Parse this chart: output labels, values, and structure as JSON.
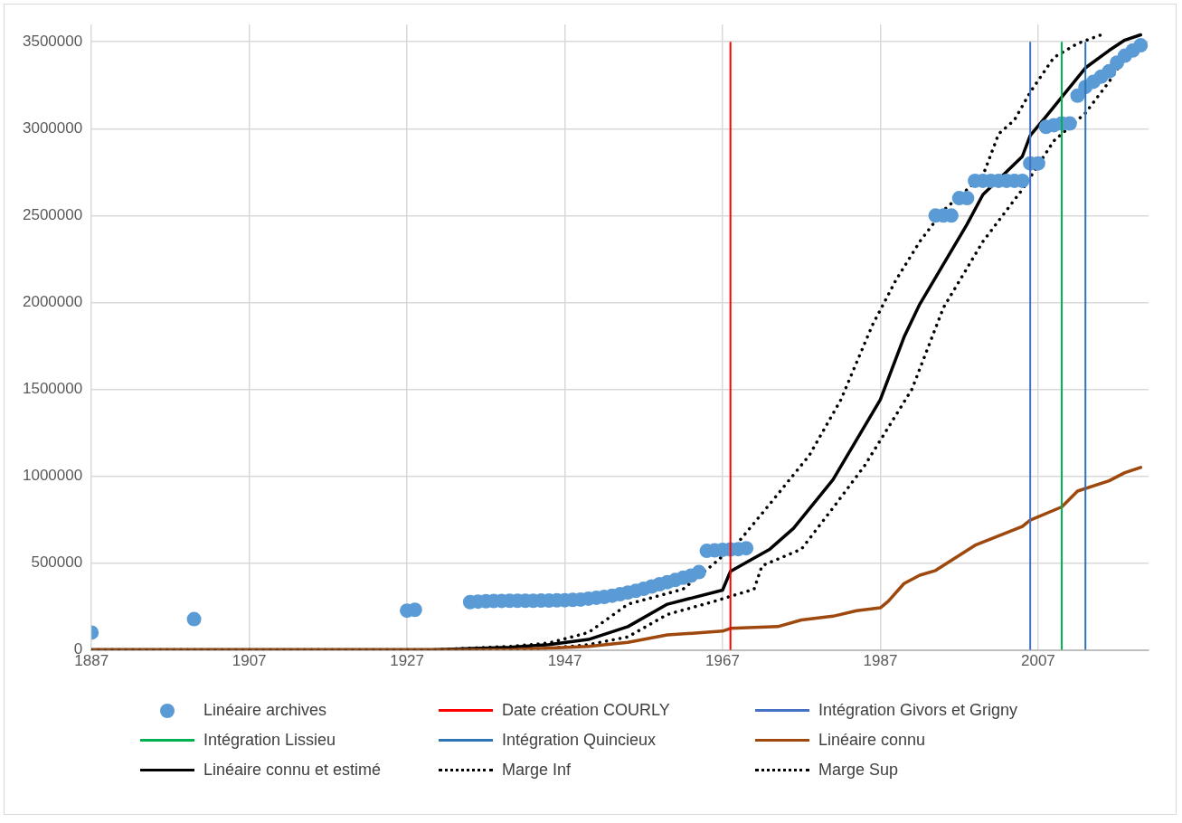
{
  "chart_data": {
    "type": "line",
    "xlim": [
      1887,
      2021
    ],
    "xticks": [
      1887,
      1907,
      1927,
      1947,
      1967,
      1987,
      2007
    ],
    "ylim": [
      0,
      3600000
    ],
    "yticks": [
      0,
      500000,
      1000000,
      1500000,
      2000000,
      2500000,
      3000000,
      3500000
    ],
    "grid": true,
    "legend": "bottom",
    "series": [
      {
        "name": "Linéaire archives",
        "type": "scatter",
        "marker": "circle",
        "color": "#5b9bd5",
        "x": [
          1887,
          1900,
          1927,
          1928,
          1935,
          1936,
          1937,
          1938,
          1939,
          1940,
          1941,
          1942,
          1943,
          1944,
          1945,
          1946,
          1947,
          1948,
          1949,
          1950,
          1951,
          1952,
          1953,
          1954,
          1955,
          1956,
          1957,
          1958,
          1959,
          1960,
          1961,
          1962,
          1963,
          1964,
          1965,
          1966,
          1967,
          1968,
          1969,
          1970,
          1994,
          1995,
          1996,
          1997,
          1998,
          1999,
          2000,
          2001,
          2002,
          2003,
          2004,
          2005,
          2006,
          2007,
          2008,
          2009,
          2010,
          2011,
          2012,
          2013,
          2014,
          2015,
          2016,
          2017,
          2018,
          2019,
          2020
        ],
        "values": [
          100000,
          177000,
          226000,
          231000,
          275000,
          278000,
          280000,
          281000,
          282000,
          283000,
          283000,
          283000,
          283000,
          284000,
          284000,
          285000,
          286000,
          288000,
          290000,
          295000,
          300000,
          305000,
          312000,
          320000,
          330000,
          340000,
          352000,
          365000,
          378000,
          390000,
          402000,
          415000,
          428000,
          448000,
          570000,
          573000,
          576000,
          578000,
          580000,
          585000,
          2500000,
          2500000,
          2500000,
          2600000,
          2600000,
          2700000,
          2700000,
          2700000,
          2700000,
          2700000,
          2700000,
          2700000,
          2800000,
          2800000,
          3010000,
          3020000,
          3030000,
          3030000,
          3190000,
          3240000,
          3270000,
          3300000,
          3330000,
          3380000,
          3420000,
          3450000,
          3480000
        ]
      },
      {
        "name": "Linéaire connu",
        "type": "line",
        "line_style": "solid",
        "color": "#9e480e",
        "x": [
          1887,
          1940,
          1950,
          1955,
          1960,
          1967,
          1968,
          1974,
          1977,
          1981,
          1984,
          1987,
          1988,
          1990,
          1992,
          1994,
          1999,
          2005,
          2006,
          2010,
          2012,
          2016,
          2018,
          2020
        ],
        "values": [
          0,
          0,
          20000,
          43000,
          86000,
          108000,
          124000,
          134000,
          172000,
          194000,
          226000,
          242000,
          280000,
          382000,
          430000,
          457000,
          602000,
          710000,
          747000,
          823000,
          914000,
          973000,
          1020000,
          1050000
        ]
      },
      {
        "name": "Linéaire connu et estimé",
        "type": "line",
        "line_style": "solid",
        "color": "#000000",
        "x": [
          1887,
          1930,
          1940,
          1945,
          1950,
          1955,
          1960,
          1967,
          1968,
          1973,
          1976,
          1981,
          1987,
          1990,
          1992,
          1995,
          1998,
          2000,
          2005,
          2006,
          2008,
          2013,
          2016,
          2018,
          2020
        ],
        "values": [
          0,
          0,
          15000,
          30000,
          60000,
          134000,
          263000,
          344000,
          452000,
          580000,
          700000,
          980000,
          1440000,
          1800000,
          1990000,
          2220000,
          2450000,
          2620000,
          2840000,
          2960000,
          3070000,
          3350000,
          3450000,
          3510000,
          3540000
        ]
      },
      {
        "name": "Marge Inf",
        "type": "line",
        "line_style": "dotted",
        "color": "#000000",
        "x": [
          1887,
          1940,
          1945,
          1950,
          1955,
          1960,
          1966,
          1971,
          1972,
          1977,
          1981,
          1985,
          1991,
          1995,
          2000,
          2005,
          2009,
          2013,
          2016,
          2018
        ],
        "values": [
          0,
          0,
          10000,
          30000,
          75000,
          204000,
          280000,
          350000,
          484000,
          580000,
          817000,
          1060000,
          1500000,
          1970000,
          2350000,
          2650000,
          2930000,
          3090000,
          3270000,
          3410000
        ]
      },
      {
        "name": "Marge Sup",
        "type": "line",
        "line_style": "dotted",
        "color": "#000000",
        "x": [
          1887,
          1930,
          1940,
          1945,
          1950,
          1955,
          1962,
          1966,
          1969,
          1973,
          1978,
          1982,
          1986,
          1989,
          1992,
          1995,
          2000,
          2002,
          2004,
          2006,
          2009,
          2012,
          2015
        ],
        "values": [
          0,
          0,
          20000,
          40000,
          100000,
          263000,
          350000,
          500000,
          620000,
          840000,
          1120000,
          1440000,
          1870000,
          2130000,
          2350000,
          2530000,
          2730000,
          2970000,
          3050000,
          3210000,
          3410000,
          3490000,
          3540000
        ]
      }
    ],
    "ref_lines": [
      {
        "axis": "x",
        "value": 1968,
        "label": "Date création COURLY",
        "color": "#ff0000"
      },
      {
        "axis": "x",
        "value": 2006,
        "label": "Intégration Givors et Grigny",
        "color": "#4472c4"
      },
      {
        "axis": "x",
        "value": 2010,
        "label": "Intégration Lissieu",
        "color": "#00b050"
      },
      {
        "axis": "x",
        "value": 2013,
        "label": "Intégration Quincieux",
        "color": "#2e75b6"
      }
    ]
  }
}
